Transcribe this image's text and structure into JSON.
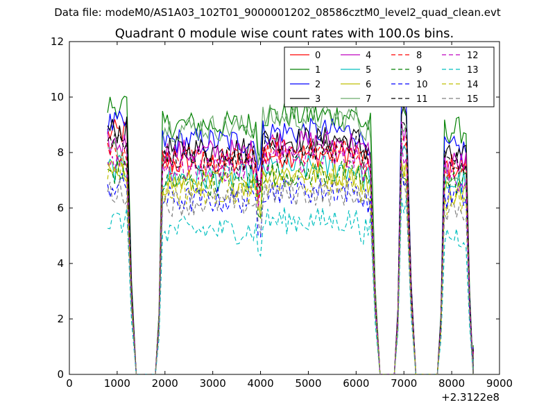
{
  "chart_data": {
    "type": "line",
    "suptitle": "Data file: modeM0/AS1A03_102T01_9000001202_08586cztM0_level2_quad_clean.evt",
    "title": "Quadrant 0 module wise count rates with 100.0s bins.",
    "xlabel": "",
    "ylabel": "",
    "x_offset_label": "+2.3122e8",
    "xlim": [
      0,
      9000
    ],
    "ylim": [
      0,
      12
    ],
    "xticks": [
      0,
      1000,
      2000,
      3000,
      4000,
      5000,
      6000,
      7000,
      8000,
      9000
    ],
    "yticks": [
      0,
      2,
      4,
      6,
      8,
      10,
      12
    ],
    "legend_position": "top-right",
    "legend_ncols": 4,
    "segments": [
      {
        "start": 800,
        "end": 1200,
        "rise_start": null,
        "fall_end": 1400
      },
      {
        "start": 1950,
        "end": 6300,
        "rise_start": 1800,
        "fall_end": 6500
      },
      {
        "start": 6950,
        "end": 7050,
        "rise_start": 6800,
        "fall_end": 7250
      },
      {
        "start": 7850,
        "end": 8300,
        "rise_start": 7700,
        "fall_end": 8450
      }
    ],
    "series": [
      {
        "name": "0",
        "color": "#ff0000",
        "dash": "solid",
        "levels": [
          8.7,
          7.6,
          8.0,
          7.5
        ]
      },
      {
        "name": "1",
        "color": "#008000",
        "dash": "solid",
        "levels": [
          9.7,
          9.0,
          9.4,
          8.8
        ]
      },
      {
        "name": "2",
        "color": "#0000ff",
        "dash": "solid",
        "levels": [
          9.0,
          8.4,
          9.6,
          8.1
        ]
      },
      {
        "name": "3",
        "color": "#000000",
        "dash": "solid",
        "levels": [
          8.8,
          8.1,
          9.4,
          7.8
        ]
      },
      {
        "name": "4",
        "color": "#bf00bf",
        "dash": "solid",
        "levels": [
          8.3,
          8.0,
          8.8,
          7.6
        ]
      },
      {
        "name": "5",
        "color": "#00bfbf",
        "dash": "solid",
        "levels": [
          7.4,
          7.1,
          7.8,
          6.9
        ]
      },
      {
        "name": "6",
        "color": "#bfbf00",
        "dash": "solid",
        "levels": [
          7.2,
          6.9,
          7.6,
          6.6
        ]
      },
      {
        "name": "7",
        "color": "#6aaa6a",
        "dash": "solid",
        "levels": [
          8.0,
          8.9,
          8.6,
          7.4
        ]
      },
      {
        "name": "8",
        "color": "#ff0000",
        "dash": "dashed",
        "levels": [
          8.1,
          7.7,
          8.2,
          7.4
        ]
      },
      {
        "name": "9",
        "color": "#008000",
        "dash": "dashed",
        "levels": [
          7.3,
          6.9,
          7.4,
          6.9
        ]
      },
      {
        "name": "10",
        "color": "#0000ff",
        "dash": "dashed",
        "levels": [
          6.8,
          6.3,
          7.0,
          6.4
        ]
      },
      {
        "name": "11",
        "color": "#000000",
        "dash": "dashed",
        "levels": [
          8.4,
          7.8,
          8.6,
          7.6
        ]
      },
      {
        "name": "12",
        "color": "#bf00bf",
        "dash": "dashed",
        "levels": [
          7.7,
          7.4,
          8.0,
          7.1
        ]
      },
      {
        "name": "13",
        "color": "#00bfbf",
        "dash": "dashed",
        "levels": [
          5.5,
          5.2,
          6.0,
          5.0
        ]
      },
      {
        "name": "14",
        "color": "#bfbf00",
        "dash": "dashed",
        "levels": [
          7.4,
          6.6,
          7.2,
          6.2
        ]
      },
      {
        "name": "15",
        "color": "#808080",
        "dash": "dashed",
        "levels": [
          6.6,
          6.2,
          6.8,
          6.0
        ]
      }
    ]
  }
}
